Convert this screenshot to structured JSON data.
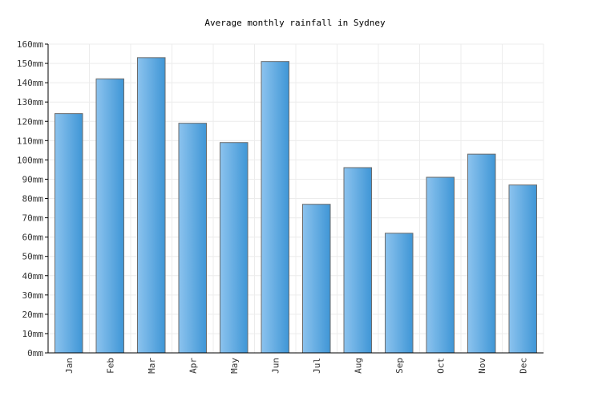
{
  "chart_data": {
    "type": "bar",
    "title": "Average monthly rainfall in Sydney",
    "xlabel": "",
    "ylabel": "",
    "categories": [
      "Jan",
      "Feb",
      "Mar",
      "Apr",
      "May",
      "Jun",
      "Jul",
      "Aug",
      "Sep",
      "Oct",
      "Nov",
      "Dec"
    ],
    "values": [
      124,
      142,
      153,
      119,
      109,
      151,
      77,
      96,
      62,
      91,
      103,
      87
    ],
    "ylim": [
      0,
      160
    ],
    "yticks": [
      "0mm",
      "10mm",
      "20mm",
      "30mm",
      "40mm",
      "50mm",
      "60mm",
      "70mm",
      "80mm",
      "90mm",
      "100mm",
      "110mm",
      "120mm",
      "130mm",
      "140mm",
      "150mm",
      "160mm"
    ],
    "grid": true,
    "legend": "none",
    "colors": {
      "bar_light": "#8cc3ee",
      "bar_dark": "#3f96d6",
      "bar_border": "#6b6b6b",
      "grid": "#ececec"
    }
  }
}
